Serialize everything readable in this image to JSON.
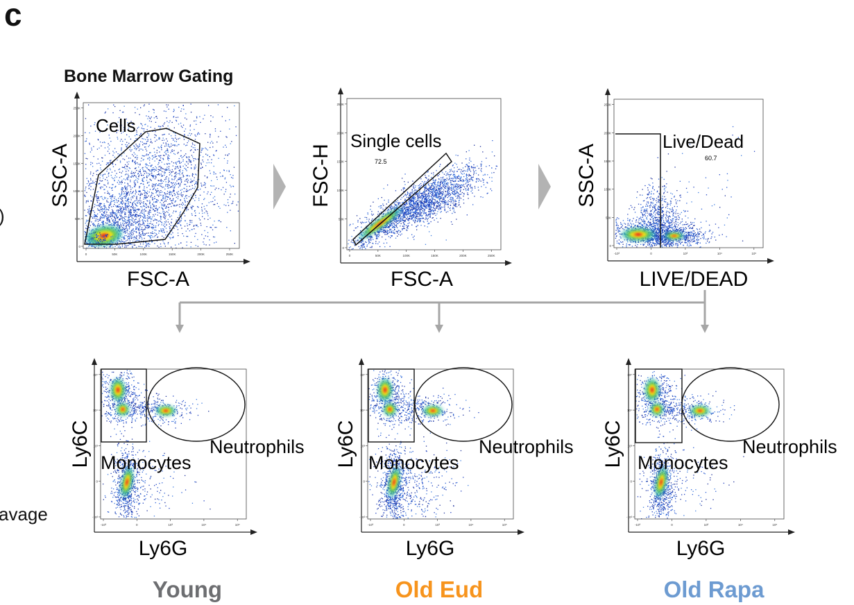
{
  "panel_letter": "c",
  "figure_title": "Bone Marrow Gating",
  "left_cut_text": {
    "paren": ")",
    "lavage": "avage"
  },
  "chart_data": [
    {
      "type": "scatter",
      "xlabel": "FSC-A",
      "ylabel": "SSC-A",
      "x_ticks": [
        "0",
        "50K",
        "100K",
        "150K",
        "200K",
        "250K"
      ],
      "y_ticks": [
        "0",
        "50K",
        "100K",
        "150K",
        "200K",
        "250K"
      ],
      "xlim": [
        0,
        262144
      ],
      "ylim": [
        0,
        262144
      ],
      "gates": [
        {
          "label": "Cells",
          "value": ""
        }
      ]
    },
    {
      "type": "scatter",
      "xlabel": "FSC-A",
      "ylabel": "FSC-H",
      "x_ticks": [
        "0",
        "50K",
        "100K",
        "150K",
        "200K",
        "250K"
      ],
      "y_ticks": [
        "0",
        "50K",
        "100K",
        "150K",
        "200K",
        "250K"
      ],
      "xlim": [
        0,
        262144
      ],
      "ylim": [
        0,
        262144
      ],
      "gates": [
        {
          "label": "Single cells",
          "value": "72.5"
        }
      ]
    },
    {
      "type": "scatter",
      "xlabel": "LIVE/DEAD",
      "ylabel": "SSC-A",
      "x_ticks": [
        "-10³",
        "0",
        "10³",
        "10⁴",
        "10⁵"
      ],
      "y_ticks": [
        "0",
        "50K",
        "100K",
        "150K",
        "200K",
        "250K"
      ],
      "ylim": [
        0,
        262144
      ],
      "gates": [
        {
          "label": "Live/Dead",
          "value": "60.7"
        }
      ]
    },
    {
      "type": "scatter",
      "group": "Young",
      "xlabel": "Ly6G",
      "ylabel": "Ly6C",
      "x_ticks": [
        "-10³",
        "0",
        "10³",
        "10⁴",
        "10⁵"
      ],
      "y_ticks": [
        "-10³",
        "0",
        "10³",
        "10⁴",
        "10⁵"
      ],
      "gates": [
        {
          "label": "Neutrophils"
        },
        {
          "label": "Monocytes"
        }
      ]
    },
    {
      "type": "scatter",
      "group": "Old Eud",
      "xlabel": "Ly6G",
      "ylabel": "Ly6C",
      "x_ticks": [
        "-10³",
        "0",
        "10³",
        "10⁴",
        "10⁵"
      ],
      "y_ticks": [
        "-10³",
        "0",
        "10³",
        "10⁴",
        "10⁵"
      ],
      "gates": [
        {
          "label": "Neutrophils"
        },
        {
          "label": "Monocytes"
        }
      ]
    },
    {
      "type": "scatter",
      "group": "Old Rapa",
      "xlabel": "Ly6G",
      "ylabel": "Ly6C",
      "x_ticks": [
        "-10³",
        "0",
        "10³",
        "10⁴",
        "10⁵"
      ],
      "y_ticks": [
        "-10³",
        "0",
        "10³",
        "10⁴",
        "10⁵"
      ],
      "gates": [
        {
          "label": "Neutrophils"
        },
        {
          "label": "Monocytes"
        }
      ]
    }
  ],
  "groups": [
    {
      "name": "Young",
      "color": "#6d6e71"
    },
    {
      "name": "Old Eud",
      "color": "#f7941d"
    },
    {
      "name": "Old Rapa",
      "color": "#6d9bd1"
    }
  ],
  "colors": {
    "arrow": "#b3b3b3",
    "connector": "#a6a6a6",
    "gate": "#111111"
  }
}
